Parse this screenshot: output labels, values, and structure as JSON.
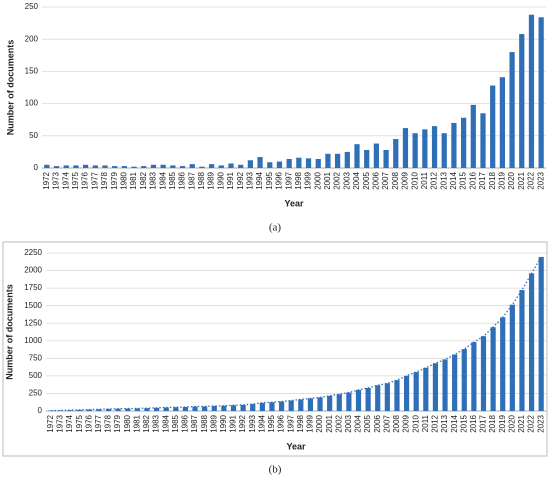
{
  "chart_data": [
    {
      "type": "bar",
      "caption": "(a)",
      "x_label": "Year",
      "y_label": "Number of documents",
      "color": "#2e6fb7",
      "categories": [
        "1972",
        "1973",
        "1974",
        "1975",
        "1976",
        "1977",
        "1978",
        "1979",
        "1980",
        "1981",
        "1982",
        "1983",
        "1984",
        "1985",
        "1986",
        "1987",
        "1988",
        "1989",
        "1990",
        "1991",
        "1992",
        "1993",
        "1994",
        "1995",
        "1996",
        "1997",
        "1998",
        "1999",
        "2000",
        "2001",
        "2002",
        "2003",
        "2004",
        "2005",
        "2006",
        "2007",
        "2008",
        "2009",
        "2010",
        "2011",
        "2012",
        "2013",
        "2014",
        "2015",
        "2016",
        "2017",
        "2018",
        "2019",
        "2020",
        "2021",
        "2022",
        "2023"
      ],
      "values": [
        5,
        3,
        4,
        4,
        5,
        4,
        4,
        3,
        3,
        2,
        3,
        5,
        5,
        4,
        3,
        6,
        2,
        6,
        4,
        7,
        5,
        12,
        17,
        9,
        10,
        14,
        16,
        15,
        14,
        22,
        22,
        25,
        37,
        28,
        38,
        28,
        45,
        62,
        54,
        60,
        65,
        54,
        70,
        78,
        98,
        85,
        128,
        141,
        180,
        208,
        238,
        234
      ],
      "ylim": [
        0,
        250
      ],
      "yticks": [
        0,
        50,
        100,
        150,
        200,
        250
      ],
      "grid": true,
      "border": false,
      "trendline": false
    },
    {
      "type": "bar",
      "caption": "(b)",
      "x_label": "Year",
      "y_label": "Number of documents",
      "color": "#2e6fb7",
      "categories": [
        "1972",
        "1973",
        "1974",
        "1975",
        "1976",
        "1977",
        "1978",
        "1979",
        "1980",
        "1981",
        "1982",
        "1983",
        "1984",
        "1985",
        "1986",
        "1987",
        "1988",
        "1989",
        "1990",
        "1991",
        "1992",
        "1993",
        "1994",
        "1995",
        "1996",
        "1997",
        "1998",
        "1999",
        "2000",
        "2001",
        "2002",
        "2003",
        "2004",
        "2005",
        "2006",
        "2007",
        "2008",
        "2009",
        "2010",
        "2011",
        "2012",
        "2013",
        "2014",
        "2015",
        "2016",
        "2017",
        "2018",
        "2019",
        "2020",
        "2021",
        "2022",
        "2023"
      ],
      "values": [
        5,
        8,
        12,
        16,
        21,
        25,
        29,
        32,
        35,
        37,
        40,
        45,
        50,
        54,
        57,
        63,
        65,
        71,
        75,
        82,
        87,
        99,
        116,
        125,
        135,
        149,
        165,
        180,
        194,
        216,
        238,
        263,
        300,
        328,
        366,
        394,
        439,
        501,
        555,
        615,
        680,
        734,
        804,
        882,
        980,
        1065,
        1193,
        1334,
        1514,
        1722,
        1960,
        2194
      ],
      "ylim": [
        0,
        2250
      ],
      "yticks": [
        0,
        250,
        500,
        750,
        1000,
        1250,
        1500,
        1750,
        2000,
        2250
      ],
      "grid": true,
      "border": true,
      "trendline": true
    }
  ]
}
